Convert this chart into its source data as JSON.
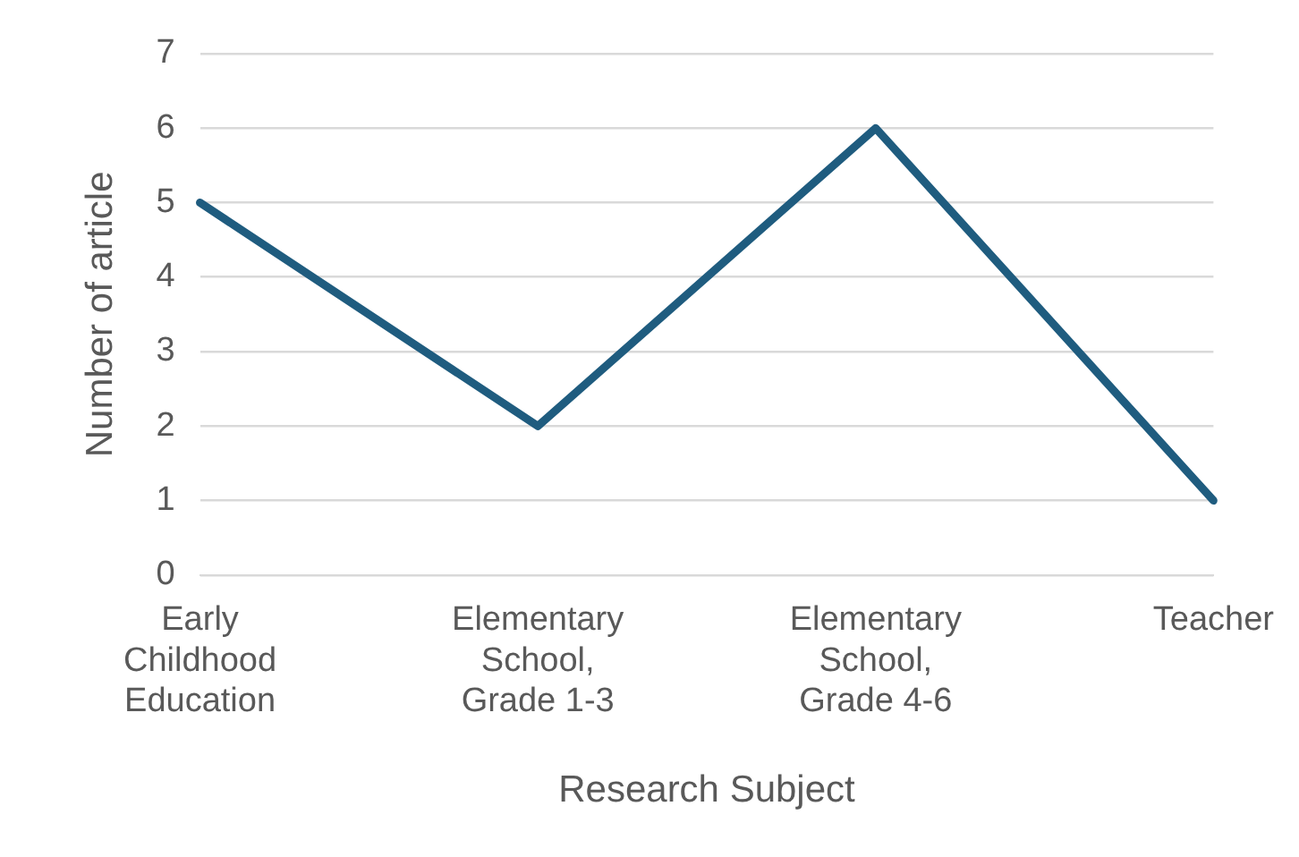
{
  "chart_data": {
    "type": "line",
    "xlabel": "Research Subject",
    "ylabel": "Number of article",
    "categories": [
      "Early Childhood Education",
      "Elementary School, Grade 1-3",
      "Elementary School, Grade 4-6",
      "Teacher"
    ],
    "series": [
      {
        "color": "#1f5c7f",
        "values": [
          5,
          2,
          6,
          1
        ]
      }
    ],
    "ylim": [
      0,
      7
    ],
    "yticks": [
      0,
      1,
      2,
      3,
      4,
      5,
      6,
      7
    ],
    "grid": "y",
    "legend": false,
    "marker": "none",
    "line_style": "solid"
  }
}
